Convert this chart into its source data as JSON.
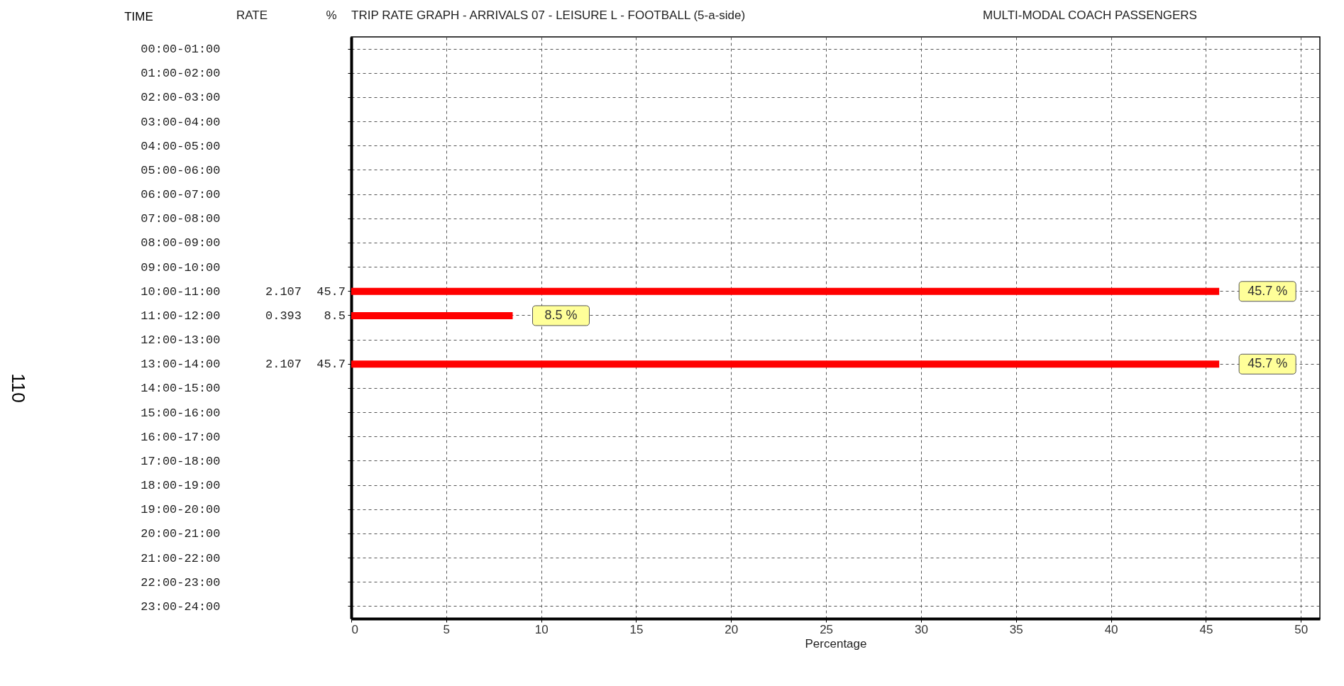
{
  "chart_data": {
    "type": "bar",
    "orientation": "horizontal",
    "title": "TRIP RATE GRAPH - ARRIVALS  07 - LEISURE  L - FOOTBALL (5-a-side)",
    "subtitle": "MULTI-MODAL  COACH PASSENGERS",
    "ylabel": "TIME",
    "xlabel": "Percentage",
    "categories": [
      "00:00-01:00",
      "01:00-02:00",
      "02:00-03:00",
      "03:00-04:00",
      "04:00-05:00",
      "05:00-06:00",
      "06:00-07:00",
      "07:00-08:00",
      "08:00-09:00",
      "09:00-10:00",
      "10:00-11:00",
      "11:00-12:00",
      "12:00-13:00",
      "13:00-14:00",
      "14:00-15:00",
      "15:00-16:00",
      "16:00-17:00",
      "17:00-18:00",
      "18:00-19:00",
      "19:00-20:00",
      "20:00-21:00",
      "21:00-22:00",
      "22:00-23:00",
      "23:00-24:00"
    ],
    "series": [
      {
        "color": "#ff0000",
        "values": [
          0,
          0,
          0,
          0,
          0,
          0,
          0,
          0,
          0,
          0,
          45.7,
          8.5,
          0,
          45.7,
          0,
          0,
          0,
          0,
          0,
          0,
          0,
          0,
          0,
          0
        ],
        "value_labels": [
          null,
          null,
          null,
          null,
          null,
          null,
          null,
          null,
          null,
          null,
          "45.7 %",
          "8.5 %",
          null,
          "45.7 %",
          null,
          null,
          null,
          null,
          null,
          null,
          null,
          null,
          null,
          null
        ]
      }
    ],
    "xlim": [
      0,
      51
    ],
    "xticks": [
      0,
      5,
      10,
      15,
      20,
      25,
      30,
      35,
      40,
      45,
      50
    ],
    "grid": true,
    "annotations": [
      "RATE",
      "%",
      "110",
      "2.107",
      "45.7",
      "0.393",
      "8.5",
      "2.107",
      "45.7"
    ]
  }
}
